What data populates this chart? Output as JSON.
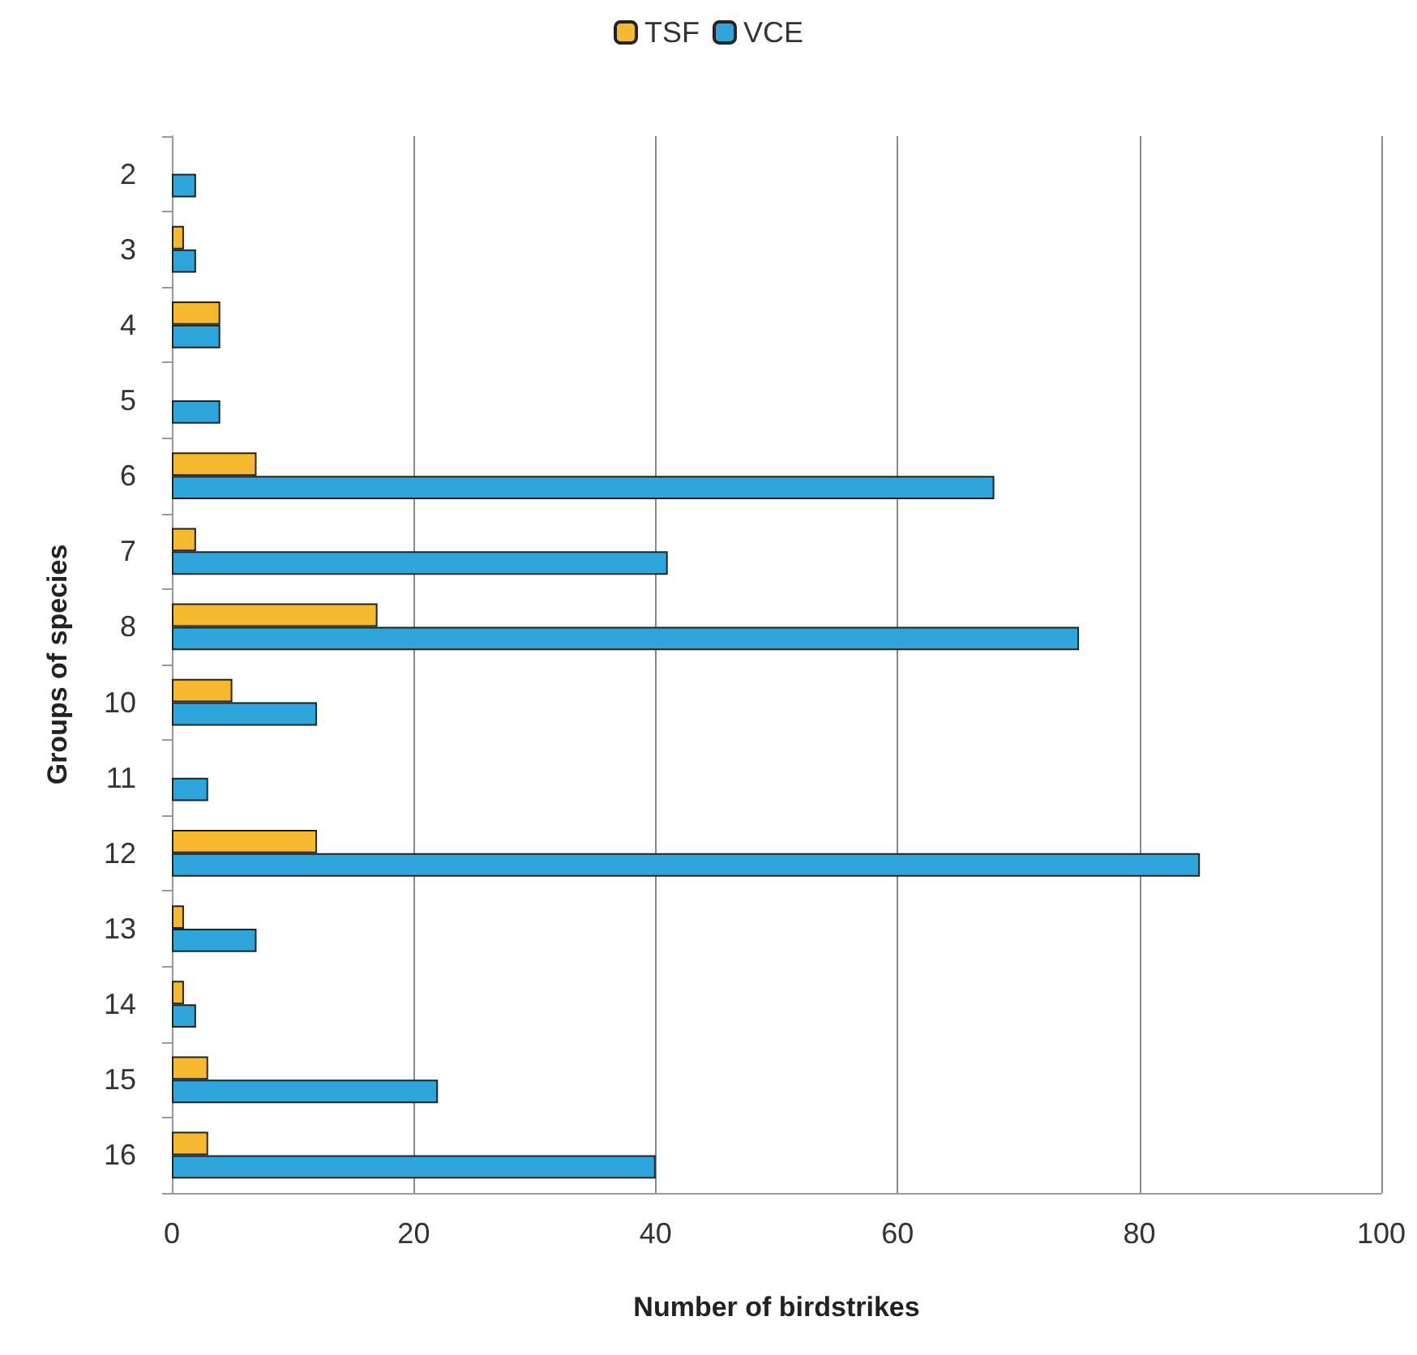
{
  "chart_data": {
    "type": "bar",
    "orientation": "horizontal",
    "xlabel": "Number of birdstrikes",
    "ylabel": "Groups of species",
    "categories": [
      "2",
      "3",
      "4",
      "5",
      "6",
      "7",
      "8",
      "10",
      "11",
      "12",
      "13",
      "14",
      "15",
      "16"
    ],
    "series": [
      {
        "name": "TSF",
        "color": "#f5b82e",
        "values": [
          null,
          1,
          4,
          null,
          7,
          2,
          17,
          5,
          null,
          12,
          1,
          1,
          3,
          3
        ]
      },
      {
        "name": "VCE",
        "color": "#2ea6dc",
        "values": [
          2,
          2,
          4,
          4,
          68,
          41,
          75,
          12,
          3,
          85,
          7,
          2,
          22,
          40
        ]
      }
    ],
    "xlim": [
      0,
      100
    ],
    "xticks": [
      0,
      20,
      40,
      60,
      80,
      100
    ],
    "grid": "x",
    "legend": "top"
  }
}
